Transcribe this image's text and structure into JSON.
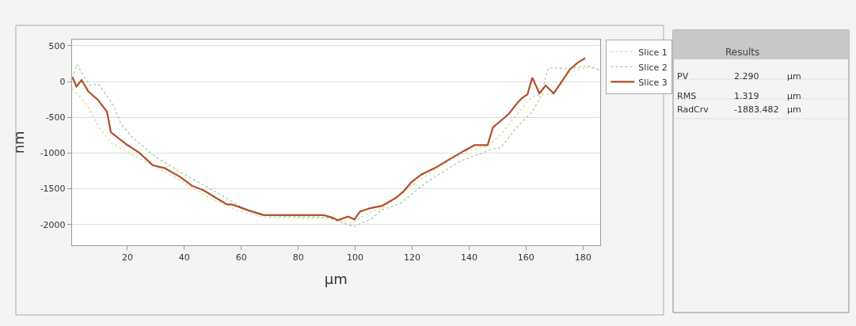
{
  "chart_data": [
    {
      "type": "line",
      "xlabel": "µm",
      "ylabel": "nm",
      "xlim": [
        0.5,
        186
      ],
      "ylim": [
        -2290,
        590
      ],
      "xticks": [
        20,
        40,
        60,
        80,
        100,
        120,
        140,
        160,
        180
      ],
      "yticks": [
        -2000,
        -1500,
        -1000,
        -500,
        0,
        500
      ],
      "grid": "y",
      "legend": "top right",
      "series": [
        {
          "name": "Slice 1",
          "color": "#d6dc9a",
          "line_style": "dotted",
          "x": [
            0.7,
            5.8,
            10.5,
            14.2,
            21.7,
            30.8,
            40,
            49,
            58.3,
            67.8,
            80,
            90,
            99,
            104,
            110,
            120,
            130,
            140,
            147,
            152,
            156,
            162,
            166,
            170,
            175,
            182,
            185.8
          ],
          "values": [
            -100,
            -330,
            -670,
            -850,
            -1030,
            -1210,
            -1420,
            -1630,
            -1800,
            -1900,
            -1910,
            -1910,
            -1980,
            -1850,
            -1760,
            -1450,
            -1180,
            -960,
            -900,
            -700,
            -500,
            -210,
            -180,
            -170,
            130,
            200,
            170
          ]
        },
        {
          "name": "Slice 2",
          "color": "#a9c9a4",
          "line_style": "dotted",
          "x": [
            0.7,
            2.2,
            6.7,
            10,
            15,
            17.8,
            21.7,
            30.8,
            40,
            53.9,
            62,
            70,
            80,
            90,
            99.4,
            105.8,
            109,
            116,
            125,
            137,
            149.4,
            151,
            156.7,
            162.2,
            165,
            167.8,
            170.6,
            175,
            181.7,
            185.8
          ],
          "values": [
            50,
            240,
            -50,
            -40,
            -330,
            -600,
            -780,
            -1080,
            -1300,
            -1610,
            -1800,
            -1880,
            -1890,
            -1900,
            -2030,
            -1920,
            -1800,
            -1700,
            -1410,
            -1110,
            -930,
            -930,
            -640,
            -420,
            -230,
            190,
            190,
            180,
            220,
            165
          ]
        },
        {
          "name": "Slice 3",
          "color": "#b0502a",
          "line_style": "solid",
          "x": [
            0.7,
            2.1,
            3.9,
            6.3,
            9.5,
            12.8,
            14.2,
            19.7,
            24.3,
            28.9,
            33,
            38.3,
            42.8,
            46.6,
            51.2,
            55,
            56.8,
            62.3,
            67.8,
            77,
            89,
            92,
            93.9,
            97.5,
            99.7,
            101.7,
            105,
            109.4,
            114.2,
            116.9,
            119.7,
            123.3,
            128,
            132.6,
            138.2,
            141.9,
            146.5,
            148.4,
            151.1,
            154,
            156.7,
            158.6,
            160.5,
            162.2,
            164.7,
            166.9,
            169.7,
            171.6,
            175.3,
            178,
            180.8
          ],
          "values": [
            60,
            -70,
            20,
            -140,
            -250,
            -420,
            -710,
            -880,
            -1000,
            -1170,
            -1210,
            -1330,
            -1460,
            -1520,
            -1630,
            -1720,
            -1720,
            -1800,
            -1870,
            -1870,
            -1870,
            -1905,
            -1940,
            -1890,
            -1930,
            -1820,
            -1775,
            -1740,
            -1630,
            -1540,
            -1410,
            -1300,
            -1210,
            -1100,
            -970,
            -890,
            -890,
            -640,
            -550,
            -450,
            -310,
            -230,
            -180,
            55,
            -165,
            -55,
            -165,
            -55,
            165,
            260,
            330
          ]
        }
      ]
    },
    {
      "type": "other",
      "title": "Results",
      "annotations": [
        "PV",
        "2.290",
        "µm",
        "RMS",
        "1.319",
        "µm",
        "RadCrv",
        "-1883.482",
        "µm"
      ]
    }
  ]
}
